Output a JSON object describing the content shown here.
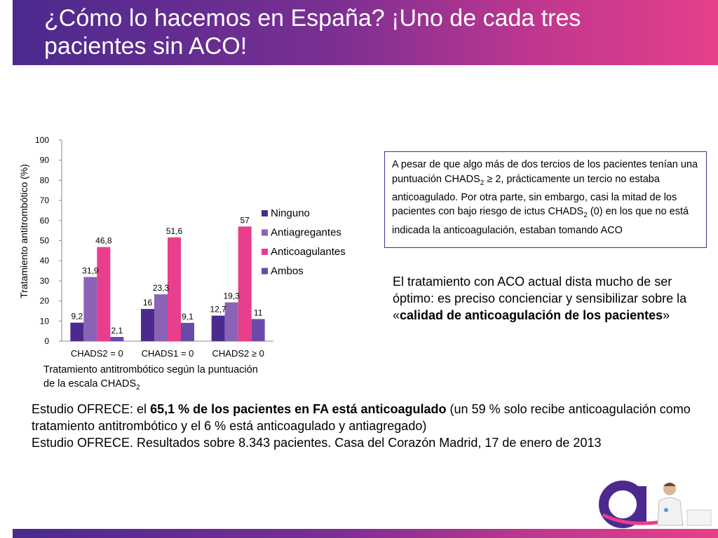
{
  "header": {
    "title_line1": "¿Cómo lo hacemos en España? ¡Uno de cada tres",
    "title_line2": "pacientes sin ACO!"
  },
  "colors": {
    "ninguno": "#4b2a8e",
    "antiagregantes": "#8a63b6",
    "anticoagulantes": "#e83e8c",
    "ambos": "#6a4aa8"
  },
  "chart_data": {
    "type": "bar",
    "categories": [
      "CHADS2 = 0",
      "CHADS1 = 0",
      "CHADS2 ≥ 0"
    ],
    "series": [
      {
        "name": "Ninguno",
        "values": [
          9.2,
          16,
          12.7
        ],
        "labels": [
          "9,2",
          "16",
          "12,7"
        ]
      },
      {
        "name": "Antiagregantes",
        "values": [
          31.9,
          23.3,
          19.3
        ],
        "labels": [
          "31,9",
          "23,3",
          "19,3"
        ]
      },
      {
        "name": "Anticoagulantes",
        "values": [
          46.8,
          51.6,
          57
        ],
        "labels": [
          "46,8",
          "51,6",
          "57"
        ]
      },
      {
        "name": "Ambos",
        "values": [
          2.1,
          9.1,
          11
        ],
        "labels": [
          "2,1",
          "9,1",
          "11"
        ]
      }
    ],
    "yticks": [
      "0",
      "10",
      "20",
      "30",
      "40",
      "50",
      "60",
      "70",
      "80",
      "90",
      "100"
    ],
    "ylim": [
      0,
      100
    ],
    "ylabel": "Tratamiento antitrombótico (%)",
    "xlabel_line1": "Tratamiento antitrombótico según la puntuación",
    "xlabel_line2_main": "de la escala CHADS",
    "xlabel_line2_sub": "2",
    "legend_position": "right",
    "grid": false
  },
  "infobox": {
    "p1": "A pesar de que algo más de dos tercios de los pacientes tenían una puntuación CHADS",
    "p1_sub": "2",
    "p2": "≥ 2, prácticamente un tercio no estaba anticoagulado. Por otra parte, sin embargo, casi la mitad de los pacientes con bajo riesgo de ictus CHADS",
    "p2_sub": "2",
    "p3": "(0) en los que no está indicada la anticoagulación, estaban tomando ACO"
  },
  "aco_text": {
    "before": "El tratamiento con ACO actual dista mucho de ser óptimo: es preciso concienciar y sensibilizar sobre la «",
    "bold": "calidad de anticoagulación de los pacientes",
    "after": "»"
  },
  "study": {
    "line1_before": "Estudio OFRECE: el ",
    "line1_bold": "65,1 % de los pacientes en FA está anticoagulado",
    "line1_after": " (un 59 % solo recibe anticoagulación como tratamiento antitrombótico y el 6 % está anticoagulado y antiagregado)",
    "line2": "Estudio OFRECE. Resultados sobre 8.343 pacientes. Casa del Corazón Madrid, 17 de enero de 2013"
  },
  "logo": {
    "icon": "company-logo-a-with-doctor"
  }
}
